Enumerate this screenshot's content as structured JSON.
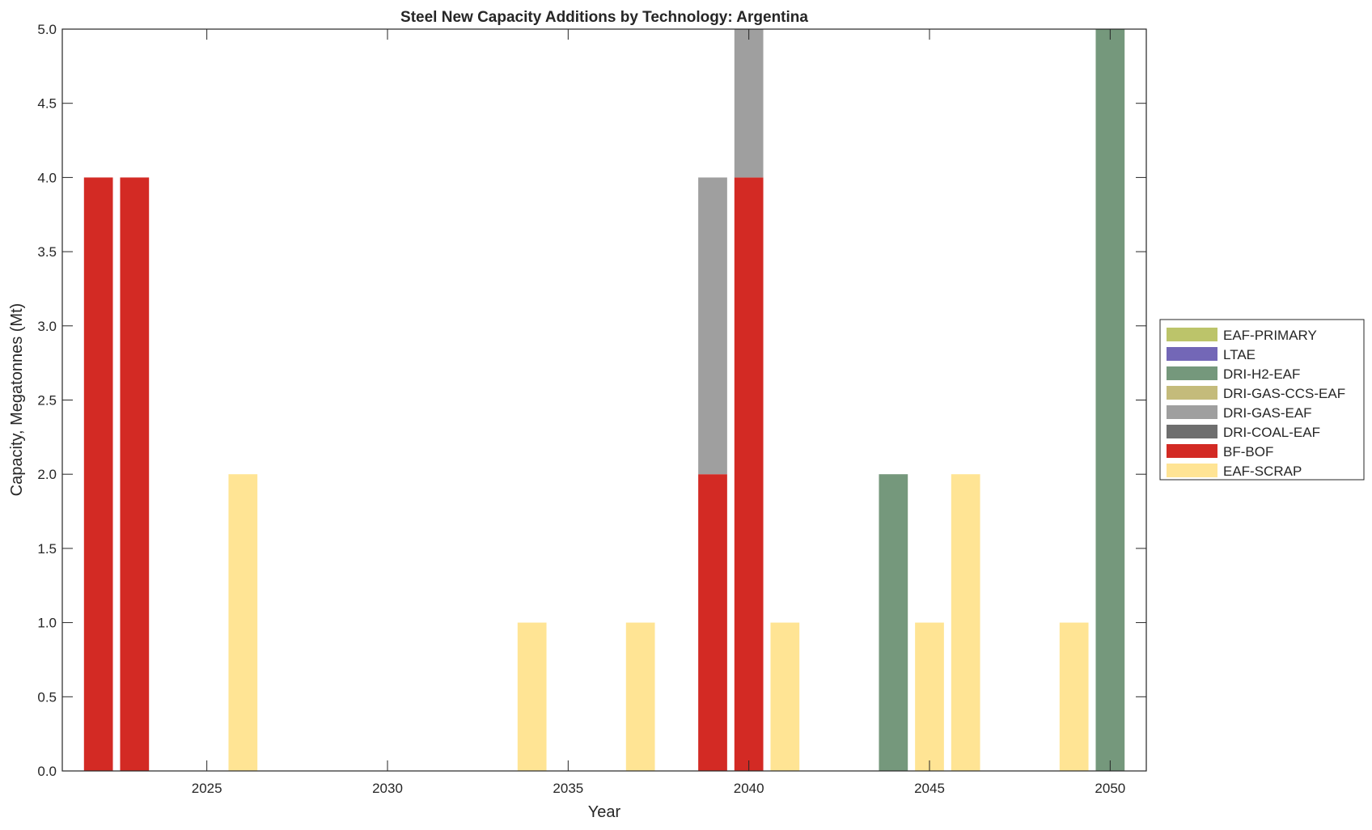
{
  "chart_data": {
    "type": "bar",
    "stacked": true,
    "title": "Steel New Capacity Additions by Technology: Argentina",
    "xlabel": "Year",
    "ylabel": "Capacity, Megatonnes (Mt)",
    "xlim": [
      2021,
      2051
    ],
    "ylim": [
      0,
      5
    ],
    "xticks": [
      2025,
      2030,
      2035,
      2040,
      2045,
      2050
    ],
    "yticks": [
      "0.0",
      "0.5",
      "1.0",
      "1.5",
      "2.0",
      "2.5",
      "3.0",
      "3.5",
      "4.0",
      "4.5",
      "5.0"
    ],
    "grid": false,
    "legend_position": "right",
    "series": [
      {
        "name": "EAF-SCRAP",
        "color": "#FFE494",
        "values": {
          "2026": 2,
          "2034": 1,
          "2037": 1,
          "2041": 1,
          "2045": 1,
          "2046": 2,
          "2049": 1
        }
      },
      {
        "name": "BF-BOF",
        "color": "#D32A24",
        "values": {
          "2022": 4,
          "2023": 4,
          "2039": 2,
          "2040": 4
        }
      },
      {
        "name": "DRI-COAL-EAF",
        "color": "#6E6E6E",
        "values": {}
      },
      {
        "name": "DRI-GAS-EAF",
        "color": "#9F9F9F",
        "values": {
          "2039": 2,
          "2040": 1
        }
      },
      {
        "name": "DRI-GAS-CCS-EAF",
        "color": "#C4BB7B",
        "values": {}
      },
      {
        "name": "DRI-H2-EAF",
        "color": "#75987C",
        "values": {
          "2044": 2,
          "2050": 5
        }
      },
      {
        "name": "LTAE",
        "color": "#7367B7",
        "values": {}
      },
      {
        "name": "EAF-PRIMARY",
        "color": "#BCC46A",
        "values": {}
      }
    ]
  }
}
